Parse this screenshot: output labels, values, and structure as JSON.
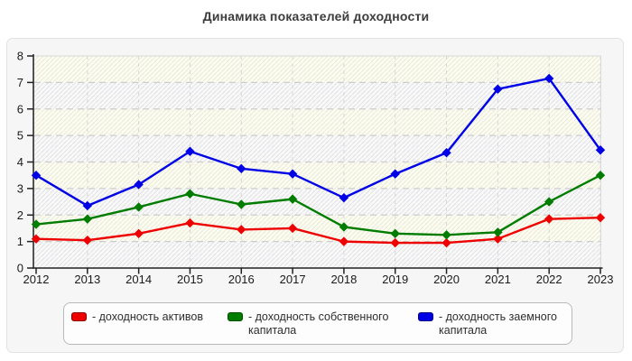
{
  "page": {
    "title": "Динамика показателей доходности"
  },
  "chart_data": {
    "type": "line",
    "title": "Динамика показателей доходности",
    "x": [
      "2012",
      "2013",
      "2014",
      "2015",
      "2016",
      "2017",
      "2018",
      "2019",
      "2020",
      "2021",
      "2022",
      "2023"
    ],
    "xlabel": "",
    "ylabel": "",
    "ylim": [
      0,
      8
    ],
    "yticks": [
      0,
      1,
      2,
      3,
      4,
      5,
      6,
      7,
      8
    ],
    "grid": true,
    "legend_position": "bottom",
    "series": [
      {
        "name": "доходность активов",
        "legend_label": "- доходность активов",
        "color": "#ee0000",
        "swatch_border": "#8b0000",
        "values": [
          1.1,
          1.05,
          1.3,
          1.7,
          1.45,
          1.5,
          1.0,
          0.95,
          0.95,
          1.1,
          1.85,
          1.9
        ]
      },
      {
        "name": "доходность собственного капитала",
        "legend_label": "- доходность собственного капитала",
        "color": "#007d00",
        "swatch_border": "#004d00",
        "values": [
          1.65,
          1.85,
          2.3,
          2.8,
          2.4,
          2.6,
          1.55,
          1.3,
          1.25,
          1.35,
          2.5,
          3.5
        ]
      },
      {
        "name": "доходность заемного капитала",
        "legend_label": "- доходность заемного капитала",
        "color": "#0000e6",
        "swatch_border": "#000080",
        "values": [
          3.5,
          2.35,
          3.15,
          4.4,
          3.75,
          3.55,
          2.65,
          3.55,
          4.35,
          6.75,
          7.15,
          4.45
        ]
      }
    ]
  }
}
